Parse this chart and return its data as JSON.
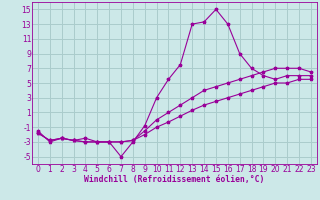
{
  "background_color": "#cce8e8",
  "grid_color": "#aacccc",
  "line_color": "#990099",
  "marker": "*",
  "xlabel": "Windchill (Refroidissement éolien,°C)",
  "xlabel_fontsize": 5.8,
  "tick_fontsize": 5.5,
  "xlim": [
    -0.5,
    23.5
  ],
  "ylim": [
    -6,
    16
  ],
  "yticks": [
    -5,
    -3,
    -1,
    1,
    3,
    5,
    7,
    9,
    11,
    13,
    15
  ],
  "xticks": [
    0,
    1,
    2,
    3,
    4,
    5,
    6,
    7,
    8,
    9,
    10,
    11,
    12,
    13,
    14,
    15,
    16,
    17,
    18,
    19,
    20,
    21,
    22,
    23
  ],
  "series": [
    {
      "x": [
        0,
        1,
        2,
        3,
        4,
        5,
        6,
        7,
        8,
        9,
        10,
        11,
        12,
        13,
        14,
        15,
        16,
        17,
        18,
        19,
        20,
        21,
        22,
        23
      ],
      "y": [
        -1.5,
        -3,
        -2.5,
        -2.8,
        -2.5,
        -3,
        -3,
        -5,
        -3,
        -0.8,
        3,
        5.5,
        7.5,
        13,
        13.3,
        15,
        13,
        9,
        7,
        6,
        5.5,
        6,
        6,
        6
      ]
    },
    {
      "x": [
        0,
        1,
        2,
        3,
        4,
        5,
        6,
        7,
        8,
        9,
        10,
        11,
        12,
        13,
        14,
        15,
        16,
        17,
        18,
        19,
        20,
        21,
        22,
        23
      ],
      "y": [
        -1.8,
        -2.8,
        -2.5,
        -2.8,
        -3,
        -3,
        -3,
        -3,
        -2.8,
        -1.5,
        0,
        1,
        2,
        3,
        4,
        4.5,
        5,
        5.5,
        6,
        6.5,
        7,
        7,
        7,
        6.5
      ]
    },
    {
      "x": [
        0,
        1,
        2,
        3,
        4,
        5,
        6,
        7,
        8,
        9,
        10,
        11,
        12,
        13,
        14,
        15,
        16,
        17,
        18,
        19,
        20,
        21,
        22,
        23
      ],
      "y": [
        -1.8,
        -2.8,
        -2.5,
        -2.8,
        -3,
        -3,
        -3,
        -3,
        -2.8,
        -2,
        -1,
        -0.3,
        0.5,
        1.3,
        2,
        2.5,
        3,
        3.5,
        4,
        4.5,
        5,
        5,
        5.5,
        5.5
      ]
    }
  ]
}
